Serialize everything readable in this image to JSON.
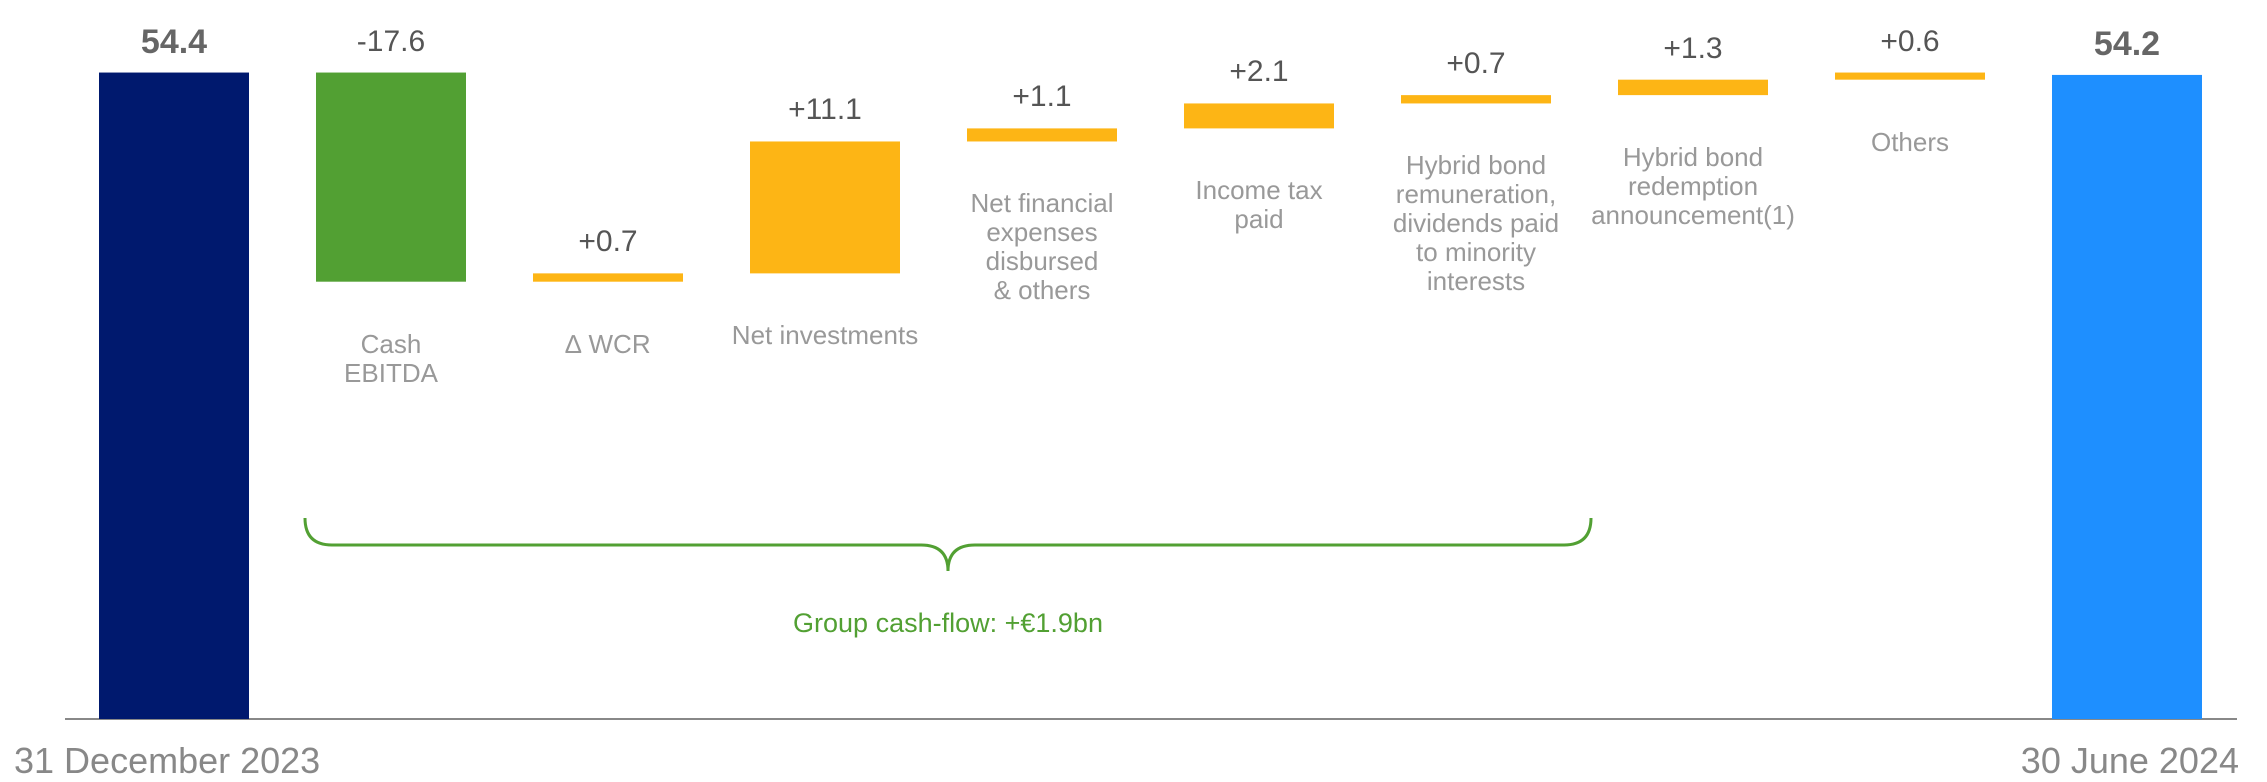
{
  "chart_data": {
    "type": "waterfall",
    "start": {
      "label": "31 December 2023",
      "value": 54.4,
      "color": "#00196e"
    },
    "end": {
      "label": "30 June 2024",
      "value": 54.2,
      "color": "#1e8fff"
    },
    "categories": [
      "Cash\nEBITDA",
      "∆ WCR",
      "Net investments",
      "Net financial\nexpenses\ndisbursed\n& others",
      "Income tax\npaid",
      "Hybrid bond\nremuneration,\ndividends paid\nto minority\ninterests",
      "Hybrid bond\nredemption\nannouncement(1)",
      "Others"
    ],
    "values": [
      -17.6,
      0.7,
      11.1,
      1.1,
      2.1,
      0.7,
      1.3,
      0.6
    ],
    "value_labels": [
      "-17.6",
      "+0.7",
      "+11.1",
      "+1.1",
      "+2.1",
      "+0.7",
      "+1.3",
      "+0.6"
    ],
    "decrease_color": "#52a033",
    "increase_color": "#fdb515",
    "ylim": [
      0,
      60
    ],
    "annotation": {
      "text": "Group cash-flow: +€1.9bn",
      "color": "#52a033"
    }
  }
}
